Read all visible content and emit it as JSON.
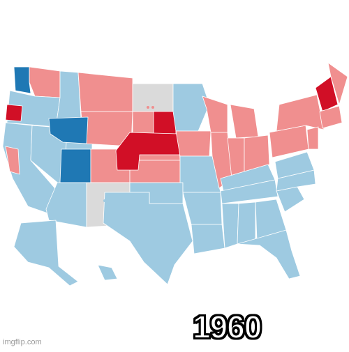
{
  "year": "1960",
  "watermark": "imgflip.com",
  "colors": {
    "background": "#ffffff",
    "dem_light": "#9ecae1",
    "dem_strong": "#1f78b4",
    "rep_light": "#f08f8f",
    "rep_strong": "#d10f26",
    "no_data": "#dadada",
    "border": "#ffffff"
  },
  "regions": [
    {
      "id": "washington-west",
      "party": "dem_strong"
    },
    {
      "id": "oregon-coast",
      "party": "rep_strong"
    },
    {
      "id": "wyoming",
      "party": "dem_strong"
    },
    {
      "id": "colorado",
      "party": "dem_strong"
    },
    {
      "id": "north-dakota",
      "party": "no_data"
    },
    {
      "id": "new-mexico",
      "party": "no_data"
    },
    {
      "id": "south-dakota-east",
      "party": "rep_strong"
    },
    {
      "id": "kansas-nebraska-central",
      "party": "rep_strong"
    },
    {
      "id": "new-hampshire-vermont",
      "party": "rep_strong"
    }
  ]
}
